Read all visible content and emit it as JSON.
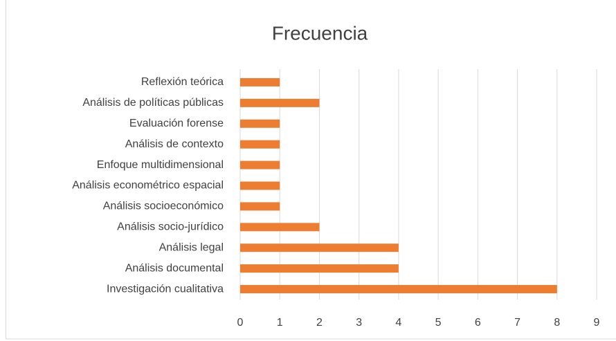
{
  "chart_data": {
    "type": "hbar",
    "title": "Frecuencia",
    "categories": [
      "Reflexión teórica",
      "Análisis de políticas públicas",
      "Evaluación forense",
      "Análisis de contexto",
      "Enfoque multidimensional",
      "Análisis econométrico espacial",
      "Análisis socioeconómico",
      "Análisis socio-jurídico",
      "Análisis legal",
      "Análisis documental",
      "Investigación cualitativa"
    ],
    "values": [
      1,
      2,
      1,
      1,
      1,
      1,
      1,
      2,
      4,
      4,
      8
    ],
    "color": "#ed7d31",
    "xlim": [
      0,
      9
    ],
    "xticks": [
      0,
      1,
      2,
      3,
      4,
      5,
      6,
      7,
      8,
      9
    ],
    "grid": true
  }
}
